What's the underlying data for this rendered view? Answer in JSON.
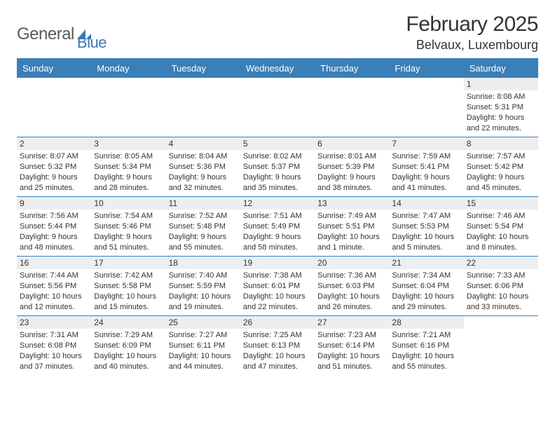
{
  "logo": {
    "word1": "General",
    "word2": "Blue"
  },
  "title": "February 2025",
  "location": "Belvaux, Luxembourg",
  "colors": {
    "accent": "#3b7fb8",
    "gray_band": "#eceef0",
    "text": "#333333",
    "bg": "#ffffff"
  },
  "weekdays": [
    "Sunday",
    "Monday",
    "Tuesday",
    "Wednesday",
    "Thursday",
    "Friday",
    "Saturday"
  ],
  "weeks": [
    [
      null,
      null,
      null,
      null,
      null,
      null,
      {
        "n": "1",
        "sunrise": "Sunrise: 8:08 AM",
        "sunset": "Sunset: 5:31 PM",
        "day1": "Daylight: 9 hours",
        "day2": "and 22 minutes."
      }
    ],
    [
      {
        "n": "2",
        "sunrise": "Sunrise: 8:07 AM",
        "sunset": "Sunset: 5:32 PM",
        "day1": "Daylight: 9 hours",
        "day2": "and 25 minutes."
      },
      {
        "n": "3",
        "sunrise": "Sunrise: 8:05 AM",
        "sunset": "Sunset: 5:34 PM",
        "day1": "Daylight: 9 hours",
        "day2": "and 28 minutes."
      },
      {
        "n": "4",
        "sunrise": "Sunrise: 8:04 AM",
        "sunset": "Sunset: 5:36 PM",
        "day1": "Daylight: 9 hours",
        "day2": "and 32 minutes."
      },
      {
        "n": "5",
        "sunrise": "Sunrise: 8:02 AM",
        "sunset": "Sunset: 5:37 PM",
        "day1": "Daylight: 9 hours",
        "day2": "and 35 minutes."
      },
      {
        "n": "6",
        "sunrise": "Sunrise: 8:01 AM",
        "sunset": "Sunset: 5:39 PM",
        "day1": "Daylight: 9 hours",
        "day2": "and 38 minutes."
      },
      {
        "n": "7",
        "sunrise": "Sunrise: 7:59 AM",
        "sunset": "Sunset: 5:41 PM",
        "day1": "Daylight: 9 hours",
        "day2": "and 41 minutes."
      },
      {
        "n": "8",
        "sunrise": "Sunrise: 7:57 AM",
        "sunset": "Sunset: 5:42 PM",
        "day1": "Daylight: 9 hours",
        "day2": "and 45 minutes."
      }
    ],
    [
      {
        "n": "9",
        "sunrise": "Sunrise: 7:56 AM",
        "sunset": "Sunset: 5:44 PM",
        "day1": "Daylight: 9 hours",
        "day2": "and 48 minutes."
      },
      {
        "n": "10",
        "sunrise": "Sunrise: 7:54 AM",
        "sunset": "Sunset: 5:46 PM",
        "day1": "Daylight: 9 hours",
        "day2": "and 51 minutes."
      },
      {
        "n": "11",
        "sunrise": "Sunrise: 7:52 AM",
        "sunset": "Sunset: 5:48 PM",
        "day1": "Daylight: 9 hours",
        "day2": "and 55 minutes."
      },
      {
        "n": "12",
        "sunrise": "Sunrise: 7:51 AM",
        "sunset": "Sunset: 5:49 PM",
        "day1": "Daylight: 9 hours",
        "day2": "and 58 minutes."
      },
      {
        "n": "13",
        "sunrise": "Sunrise: 7:49 AM",
        "sunset": "Sunset: 5:51 PM",
        "day1": "Daylight: 10 hours",
        "day2": "and 1 minute."
      },
      {
        "n": "14",
        "sunrise": "Sunrise: 7:47 AM",
        "sunset": "Sunset: 5:53 PM",
        "day1": "Daylight: 10 hours",
        "day2": "and 5 minutes."
      },
      {
        "n": "15",
        "sunrise": "Sunrise: 7:46 AM",
        "sunset": "Sunset: 5:54 PM",
        "day1": "Daylight: 10 hours",
        "day2": "and 8 minutes."
      }
    ],
    [
      {
        "n": "16",
        "sunrise": "Sunrise: 7:44 AM",
        "sunset": "Sunset: 5:56 PM",
        "day1": "Daylight: 10 hours",
        "day2": "and 12 minutes."
      },
      {
        "n": "17",
        "sunrise": "Sunrise: 7:42 AM",
        "sunset": "Sunset: 5:58 PM",
        "day1": "Daylight: 10 hours",
        "day2": "and 15 minutes."
      },
      {
        "n": "18",
        "sunrise": "Sunrise: 7:40 AM",
        "sunset": "Sunset: 5:59 PM",
        "day1": "Daylight: 10 hours",
        "day2": "and 19 minutes."
      },
      {
        "n": "19",
        "sunrise": "Sunrise: 7:38 AM",
        "sunset": "Sunset: 6:01 PM",
        "day1": "Daylight: 10 hours",
        "day2": "and 22 minutes."
      },
      {
        "n": "20",
        "sunrise": "Sunrise: 7:36 AM",
        "sunset": "Sunset: 6:03 PM",
        "day1": "Daylight: 10 hours",
        "day2": "and 26 minutes."
      },
      {
        "n": "21",
        "sunrise": "Sunrise: 7:34 AM",
        "sunset": "Sunset: 6:04 PM",
        "day1": "Daylight: 10 hours",
        "day2": "and 29 minutes."
      },
      {
        "n": "22",
        "sunrise": "Sunrise: 7:33 AM",
        "sunset": "Sunset: 6:06 PM",
        "day1": "Daylight: 10 hours",
        "day2": "and 33 minutes."
      }
    ],
    [
      {
        "n": "23",
        "sunrise": "Sunrise: 7:31 AM",
        "sunset": "Sunset: 6:08 PM",
        "day1": "Daylight: 10 hours",
        "day2": "and 37 minutes."
      },
      {
        "n": "24",
        "sunrise": "Sunrise: 7:29 AM",
        "sunset": "Sunset: 6:09 PM",
        "day1": "Daylight: 10 hours",
        "day2": "and 40 minutes."
      },
      {
        "n": "25",
        "sunrise": "Sunrise: 7:27 AM",
        "sunset": "Sunset: 6:11 PM",
        "day1": "Daylight: 10 hours",
        "day2": "and 44 minutes."
      },
      {
        "n": "26",
        "sunrise": "Sunrise: 7:25 AM",
        "sunset": "Sunset: 6:13 PM",
        "day1": "Daylight: 10 hours",
        "day2": "and 47 minutes."
      },
      {
        "n": "27",
        "sunrise": "Sunrise: 7:23 AM",
        "sunset": "Sunset: 6:14 PM",
        "day1": "Daylight: 10 hours",
        "day2": "and 51 minutes."
      },
      {
        "n": "28",
        "sunrise": "Sunrise: 7:21 AM",
        "sunset": "Sunset: 6:16 PM",
        "day1": "Daylight: 10 hours",
        "day2": "and 55 minutes."
      },
      null
    ]
  ]
}
